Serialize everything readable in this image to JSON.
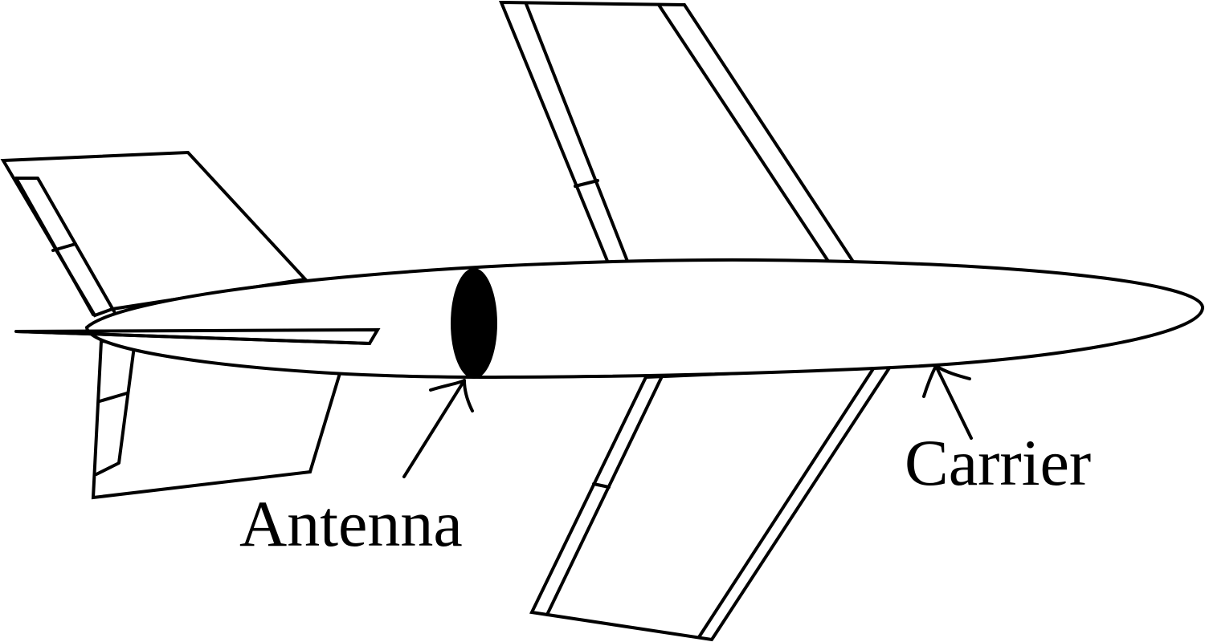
{
  "labels": {
    "antenna": "Antenna",
    "carrier": "Carrier"
  },
  "colors": {
    "line": "#000000",
    "background": "#ffffff"
  }
}
